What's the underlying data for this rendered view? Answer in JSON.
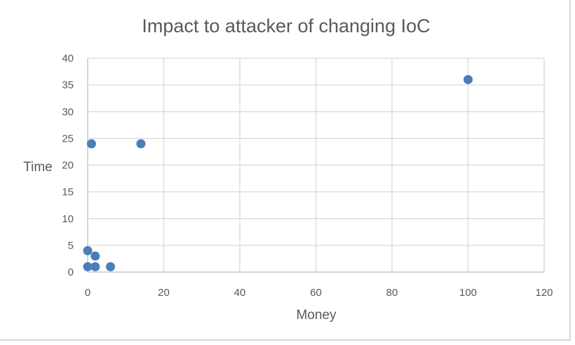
{
  "chart_data": {
    "type": "scatter",
    "title": "Impact to attacker of changing IoC",
    "xlabel": "Money",
    "ylabel": "Time",
    "xlim": [
      0,
      120
    ],
    "ylim": [
      0,
      40
    ],
    "x_ticks": [
      "0",
      "20",
      "40",
      "60",
      "80",
      "100",
      "120"
    ],
    "y_ticks": [
      "0",
      "5",
      "10",
      "15",
      "20",
      "25",
      "30",
      "35",
      "40"
    ],
    "grid": true,
    "legend": "none",
    "marker_color": "#4a7ebb",
    "series": [
      {
        "points": [
          {
            "x": 0,
            "y": 1
          },
          {
            "x": 0,
            "y": 4
          },
          {
            "x": 2,
            "y": 1
          },
          {
            "x": 2,
            "y": 3
          },
          {
            "x": 6,
            "y": 1
          },
          {
            "x": 1,
            "y": 24
          },
          {
            "x": 14,
            "y": 24
          },
          {
            "x": 100,
            "y": 36
          }
        ]
      }
    ]
  }
}
